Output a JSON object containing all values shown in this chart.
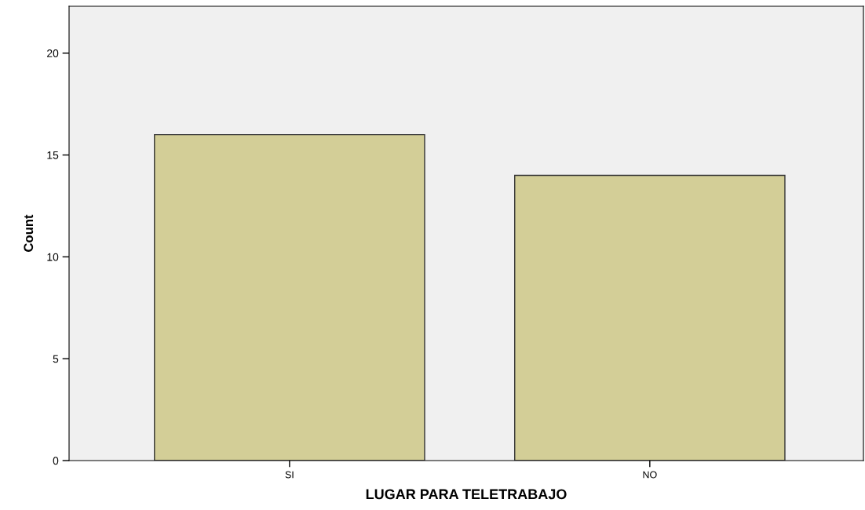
{
  "chart_data": {
    "type": "bar",
    "xlabel": "LUGAR PARA TELETRABAJO",
    "ylabel": "Count",
    "categories": [
      "SI",
      "NO"
    ],
    "values": [
      16,
      14
    ],
    "color": "#d3ce97",
    "ylim": [
      0,
      22.3
    ],
    "yticks": [
      0,
      5,
      10,
      15,
      20
    ],
    "grid": false
  }
}
